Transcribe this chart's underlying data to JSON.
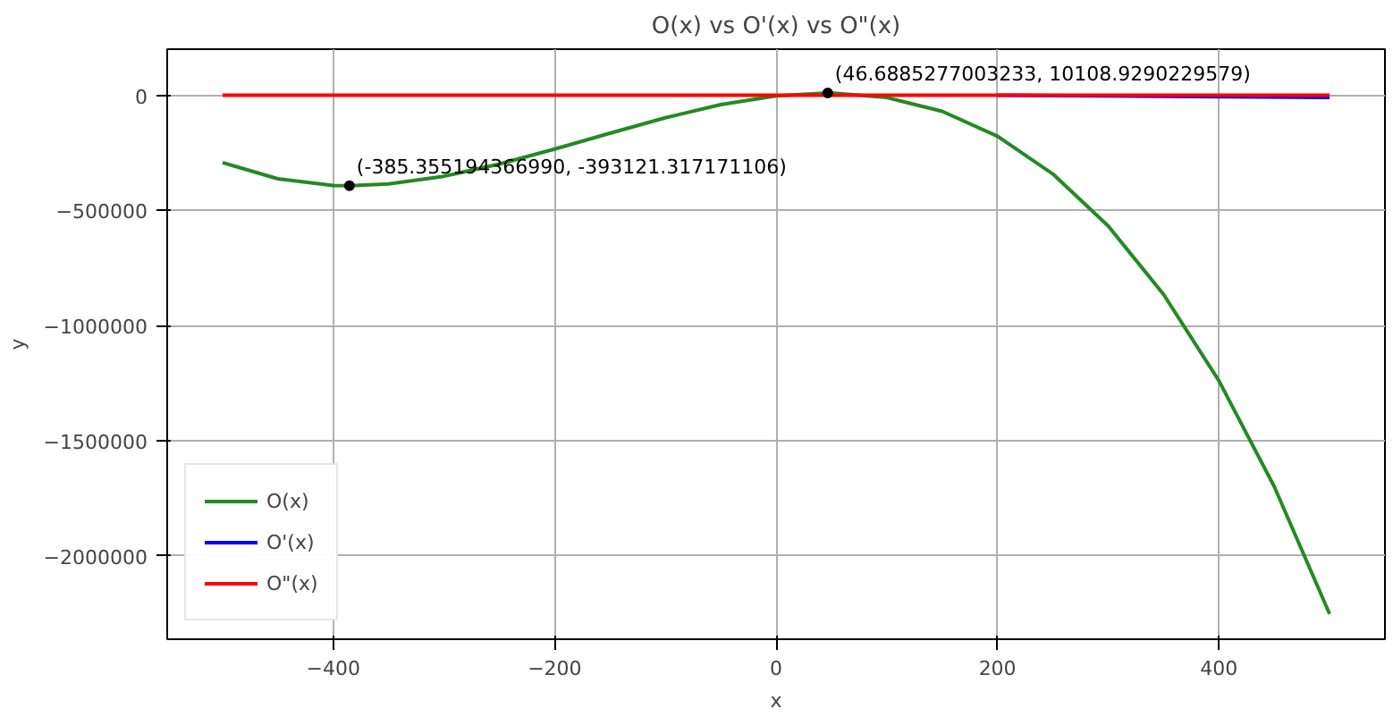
{
  "chart_data": {
    "type": "line",
    "title": "O(x) vs O'(x) vs O\"(x)",
    "xlabel": "x",
    "ylabel": "y",
    "xlim": [
      -550,
      550
    ],
    "ylim": [
      -2363000,
      200000
    ],
    "xticks": [
      {
        "value": -400,
        "label": "−400"
      },
      {
        "value": -200,
        "label": "−200"
      },
      0,
      200,
      400
    ],
    "yticks": [
      {
        "value": 0,
        "label": "0"
      },
      {
        "value": -500000,
        "label": "−500000"
      },
      {
        "value": -1000000,
        "label": "−1000000"
      },
      {
        "value": -1500000,
        "label": "−1500000"
      },
      {
        "value": -2000000,
        "label": "−2000000"
      }
    ],
    "grid": true,
    "legend": "bottom left",
    "series": [
      {
        "name": "O(x)",
        "color": "#228b22",
        "x": [
          -500,
          -450,
          -400,
          -385.355,
          -350,
          -300,
          -250,
          -200,
          -150,
          -100,
          -50,
          0,
          46.6885,
          50,
          100,
          150,
          200,
          250,
          300,
          350,
          400,
          450,
          500
        ],
        "values": [
          -293000,
          -363000,
          -392000,
          -393121,
          -385000,
          -352000,
          -299000,
          -234000,
          -165000,
          -98000,
          -41000,
          -3000,
          10109,
          10000,
          -10000,
          -70000,
          -178000,
          -342000,
          -568000,
          -865000,
          -1240000,
          -1700000,
          -2253000
        ]
      },
      {
        "name": "O'(x)",
        "color": "#0000ff",
        "x": [
          200,
          500
        ],
        "values": [
          0,
          -10000
        ]
      },
      {
        "name": "O\"(x)",
        "color": "#ff0000",
        "x": [
          -500,
          500
        ],
        "values": [
          0,
          0
        ]
      }
    ],
    "annotations": [
      {
        "text": "(-385.355194366990, -393121.317171106)",
        "x": -385.35519436699,
        "y": -393121.317171106
      },
      {
        "text": "(46.6885277003233, 10108.9290229579)",
        "x": 46.6885277003233,
        "y": 10108.9290229579
      }
    ]
  }
}
